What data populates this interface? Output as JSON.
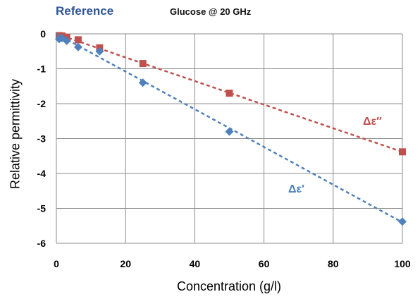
{
  "header": {
    "reference_label": "Reference",
    "reference_color": "#2f5597"
  },
  "chart_data": {
    "type": "scatter",
    "title": "Glucose @ 20 GHz",
    "xlabel": "Concentration (g/l)",
    "ylabel": "Relative permittivity",
    "xlim": [
      0,
      100
    ],
    "ylim": [
      -6,
      0
    ],
    "xticks": [
      0,
      20,
      40,
      60,
      80,
      100
    ],
    "yticks": [
      0,
      -1,
      -2,
      -3,
      -4,
      -5,
      -6
    ],
    "grid": true,
    "series": [
      {
        "name": "Δε′′",
        "color": "#c0504d",
        "marker": "square",
        "x": [
          0.8,
          1.6,
          3,
          6.3,
          12.5,
          25,
          50,
          100
        ],
        "y": [
          -0.05,
          -0.06,
          -0.1,
          -0.17,
          -0.4,
          -0.85,
          -1.7,
          -3.38
        ],
        "trendline": {
          "x": [
            0,
            100
          ],
          "y": [
            0,
            -3.38
          ]
        }
      },
      {
        "name": "Δε′",
        "color": "#4f81bd",
        "marker": "diamond",
        "x": [
          0.8,
          1.6,
          3,
          6.3,
          12.5,
          25,
          50,
          100
        ],
        "y": [
          -0.15,
          -0.12,
          -0.2,
          -0.38,
          -0.5,
          -1.4,
          -2.8,
          -5.38
        ],
        "trendline": {
          "x": [
            0,
            100
          ],
          "y": [
            0,
            -5.4
          ]
        }
      }
    ]
  }
}
